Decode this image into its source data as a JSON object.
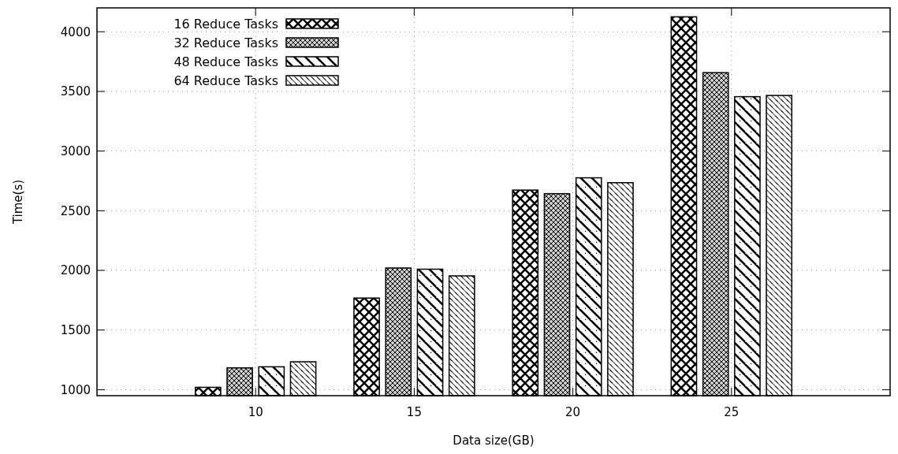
{
  "chart_data": {
    "type": "bar",
    "xlabel": "Data size(GB)",
    "ylabel": "Time(s)",
    "x": [
      10,
      15,
      20,
      25
    ],
    "xlim": [
      5,
      30
    ],
    "xticks": [
      10,
      15,
      20,
      25
    ],
    "ylim": [
      950,
      4200
    ],
    "yticks": [
      1000,
      1500,
      2000,
      2500,
      3000,
      3500,
      4000
    ],
    "grid": true,
    "legend": "top left",
    "series": [
      {
        "name": "16 Reduce Tasks",
        "color": "#000000",
        "values": [
          1020,
          1768,
          2673,
          4125
        ]
      },
      {
        "name": "32 Reduce Tasks",
        "color": "#000000",
        "values": [
          1183,
          2020,
          2643,
          3657
        ]
      },
      {
        "name": "48 Reduce Tasks",
        "color": "#000000",
        "values": [
          1192,
          2010,
          2776,
          3456
        ]
      },
      {
        "name": "64 Reduce Tasks",
        "color": "#000000",
        "values": [
          1234,
          1954,
          2735,
          3466
        ]
      }
    ]
  }
}
